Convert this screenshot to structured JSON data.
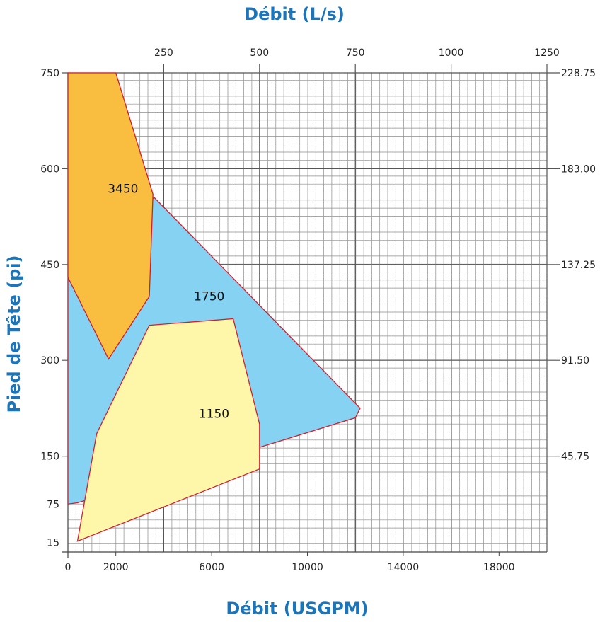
{
  "chart_data": {
    "type": "area",
    "title_top": "Débit (L/s)",
    "xlabel": "Débit (USGPM)",
    "ylabel": "Pied de Tête (pi)",
    "xlim": [
      0,
      20000
    ],
    "ylim": [
      0,
      750
    ],
    "x_ticks_bottom": [
      "0",
      "2000",
      "6000",
      "10000",
      "14000",
      "18000"
    ],
    "x_ticks_bottom_values": [
      0,
      2000,
      6000,
      10000,
      14000,
      18000
    ],
    "x_ticks_top": [
      "250",
      "500",
      "750",
      "1000",
      "1250"
    ],
    "x_ticks_top_values": [
      4000,
      8000,
      12000,
      16000,
      20000
    ],
    "y_ticks_left": [
      "15",
      "75",
      "150",
      "300",
      "450",
      "600",
      "750"
    ],
    "y_ticks_left_values": [
      15,
      75,
      150,
      300,
      450,
      600,
      750
    ],
    "y_ticks_right": [
      "45.75",
      "91.50",
      "137.25",
      "183.00",
      "228.75"
    ],
    "y_ticks_right_values": [
      150,
      300,
      450,
      600,
      750
    ],
    "grid": true,
    "colors": {
      "grid": "#8c8c8c",
      "outline": "#d11f2e",
      "region_1750": "#86d2f3",
      "region_3450": "#f9bd40",
      "region_1150": "#fef7aa",
      "title": "#1b75bb",
      "frame": "#2a6db5"
    },
    "series": [
      {
        "name": "1750",
        "color": "#86d2f3",
        "label_at": [
          5900,
          394
        ],
        "points": [
          [
            0,
            425
          ],
          [
            3600,
            555
          ],
          [
            12200,
            225
          ],
          [
            12000,
            210
          ],
          [
            8100,
            165
          ],
          [
            400,
            77
          ],
          [
            0,
            75
          ]
        ]
      },
      {
        "name": "3450",
        "color": "#f9bd40",
        "label_at": [
          2300,
          562
        ],
        "points": [
          [
            0,
            750
          ],
          [
            2000,
            750
          ],
          [
            3550,
            560
          ],
          [
            3400,
            400
          ],
          [
            1700,
            302
          ],
          [
            0,
            430
          ]
        ]
      },
      {
        "name": "1150",
        "color": "#fef7aa",
        "label_at": [
          6100,
          210
        ],
        "points": [
          [
            3400,
            355
          ],
          [
            6900,
            365
          ],
          [
            8000,
            200
          ],
          [
            8000,
            130
          ],
          [
            400,
            17
          ],
          [
            1200,
            185
          ]
        ]
      }
    ]
  }
}
